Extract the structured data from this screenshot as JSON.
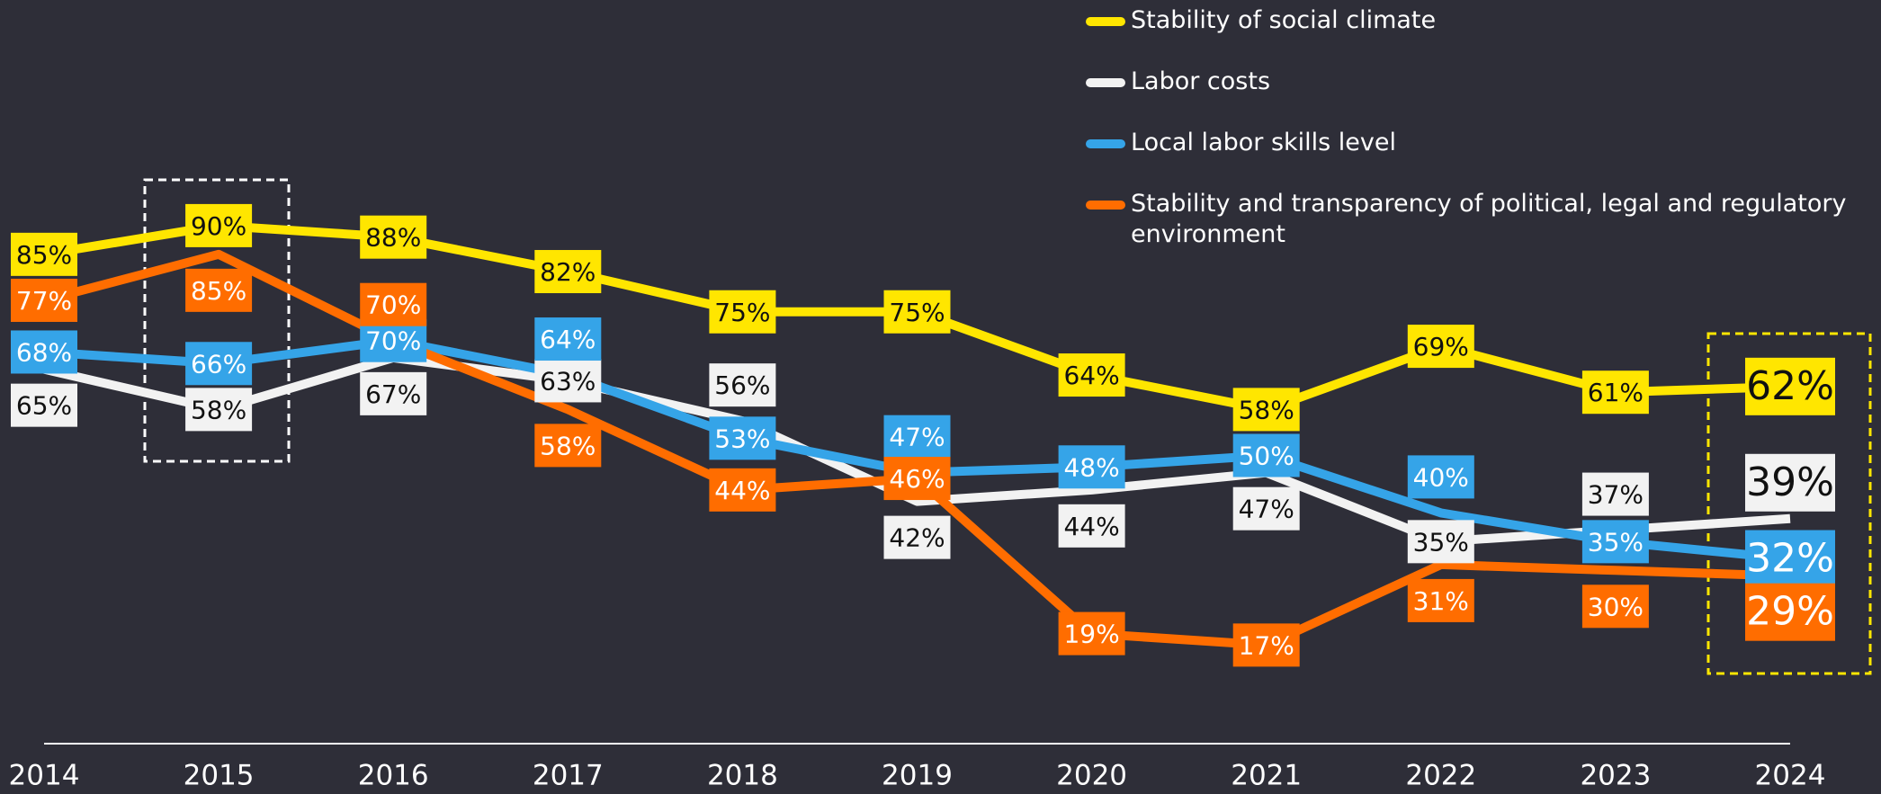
{
  "chart_data": {
    "type": "line",
    "x": [
      "2014",
      "2015",
      "2016",
      "2017",
      "2018",
      "2019",
      "2020",
      "2021",
      "2022",
      "2023",
      "2024"
    ],
    "ylim": [
      0,
      100
    ],
    "series": [
      {
        "name": "Stability of social climate",
        "color": "#ffe600",
        "values": [
          85,
          90,
          88,
          82,
          75,
          75,
          64,
          58,
          69,
          61,
          62
        ],
        "value_labels": [
          "85%",
          "90%",
          "88%",
          "82%",
          "75%",
          "75%",
          "64%",
          "58%",
          "69%",
          "61%",
          "62%"
        ]
      },
      {
        "name": "Labor costs",
        "color": "#f2f2f2",
        "values": [
          65,
          58,
          67,
          63,
          56,
          42,
          44,
          47,
          35,
          37,
          39
        ],
        "value_labels": [
          "65%",
          "58%",
          "67%",
          "63%",
          "56%",
          "42%",
          "44%",
          "47%",
          "35%",
          "37%",
          "39%"
        ]
      },
      {
        "name": "Local labor skills level",
        "color": "#35a4e8",
        "values": [
          68,
          66,
          70,
          64,
          53,
          47,
          48,
          50,
          40,
          35,
          32
        ],
        "value_labels": [
          "68%",
          "66%",
          "70%",
          "64%",
          "53%",
          "47%",
          "48%",
          "50%",
          "40%",
          "35%",
          "32%"
        ]
      },
      {
        "name": "Stability and transparency of political, legal and regulatory environment",
        "color": "#ff6d00",
        "values": [
          77,
          85,
          70,
          58,
          44,
          46,
          19,
          17,
          31,
          30,
          29
        ],
        "value_labels": [
          "77%",
          "85%",
          "70%",
          "58%",
          "44%",
          "46%",
          "19%",
          "17%",
          "31%",
          "30%",
          "29%"
        ]
      }
    ]
  }
}
